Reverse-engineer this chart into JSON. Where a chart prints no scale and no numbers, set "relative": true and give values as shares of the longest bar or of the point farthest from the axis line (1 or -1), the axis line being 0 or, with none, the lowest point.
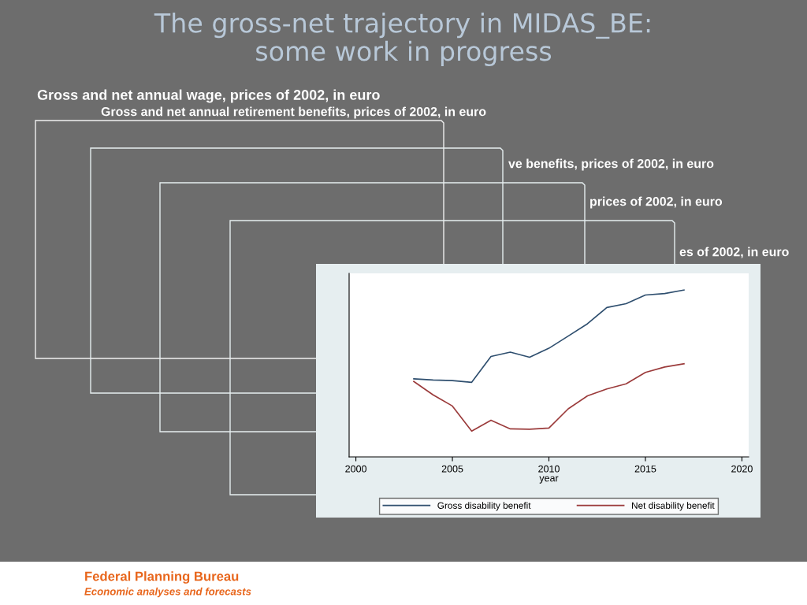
{
  "chart_data": {
    "type": "line",
    "title": "The gross-net trajectory in MIDAS_BE:\nsome work in progress",
    "subtitle": "Gross and net annual wage, prices of 2002, in euro",
    "xlabel": "year",
    "relative": true,
    "x": [
      2003,
      2004,
      2005,
      2006,
      2007,
      2008,
      2009,
      2010,
      2011,
      2012,
      2013,
      2014,
      2015,
      2016,
      2017
    ],
    "xlim": [
      1999.65,
      2020.35
    ],
    "xticks": [
      2000,
      2005,
      2010,
      2015,
      2020
    ],
    "series": [
      {
        "name": "Gross disability benefit",
        "color": "#2f4f6f",
        "values": [
          0.468,
          0.461,
          0.457,
          0.447,
          0.602,
          0.628,
          0.597,
          0.651,
          0.724,
          0.798,
          0.895,
          0.918,
          0.97,
          0.979,
          1.0
        ]
      },
      {
        "name": "Net disability benefit",
        "color": "#9b3b3b",
        "values": [
          0.452,
          0.372,
          0.305,
          0.155,
          0.22,
          0.168,
          0.166,
          0.173,
          0.288,
          0.366,
          0.407,
          0.438,
          0.506,
          0.539,
          0.558
        ]
      }
    ],
    "legend": "bottom",
    "marker": "none",
    "line_style": "solid",
    "grid": false,
    "annotations": [
      "Gross and net annual retirement benefits, prices of 2002, in euro",
      "ve benefits, prices of 2002, in euro",
      "prices of 2002, in euro",
      "es of 2002, in euro",
      "Federal Planning Bureau",
      "Economic analyses and forecasts"
    ]
  }
}
